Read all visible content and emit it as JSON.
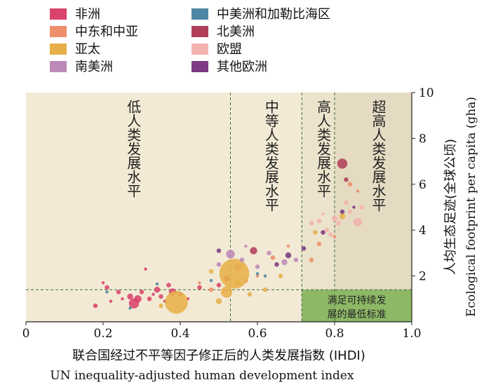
{
  "chart_data": {
    "type": "scatter",
    "xlabel": "联合国经过不平等因子修正后的人类发展指数 (IHDI)",
    "xlabel_en": "UN inequality-adjusted human development index",
    "ylabel": "人均生态足迹(全球公顷)",
    "ylabel_en": "Ecological footprint per capita (gha)",
    "xlim": [
      0,
      1.0
    ],
    "ylim": [
      0,
      10
    ],
    "x_ticks": [
      "0",
      "0.2",
      "0.4",
      "0.6",
      "0.8",
      "1.0"
    ],
    "x_tick_values": [
      0,
      0.2,
      0.4,
      0.6,
      0.8,
      1.0
    ],
    "y_ticks": [
      "2",
      "4",
      "6",
      "8",
      "10"
    ],
    "y_tick_values": [
      2,
      4,
      6,
      8,
      10
    ],
    "thresholds_x": [
      0.53,
      0.715,
      0.8
    ],
    "threshold_y": 1.4,
    "zones": [
      {
        "label": "低人类发展水平",
        "x_range": [
          0,
          0.53
        ],
        "color": "#f3ead5"
      },
      {
        "label": "中等人类发展水平",
        "x_range": [
          0.53,
          0.715
        ],
        "color": "#f3ead5"
      },
      {
        "label": "高人类发展水平",
        "x_range": [
          0.715,
          0.8
        ],
        "color": "#ece3cc"
      },
      {
        "label": "超高人类发展水平",
        "x_range": [
          0.8,
          1.0
        ],
        "color": "#e5dbc2"
      }
    ],
    "sustainable_box": {
      "label_line1": "满足可持续发",
      "label_line2": "展的最低标准",
      "color": "#8db866"
    },
    "legend": [
      {
        "name": "非洲",
        "color": "#d9436c"
      },
      {
        "name": "中东和中亚",
        "color": "#ee8e6c"
      },
      {
        "name": "亚太",
        "color": "#e7b04a"
      },
      {
        "name": "南美洲",
        "color": "#bd8ab8"
      },
      {
        "name": "中美洲和加勒比海区",
        "color": "#4d86a4"
      },
      {
        "name": "北美洲",
        "color": "#b0405a"
      },
      {
        "name": "欧盟",
        "color": "#f3b2ae"
      },
      {
        "name": "其他欧洲",
        "color": "#7d3a82"
      }
    ],
    "series": [
      {
        "name": "非洲",
        "color": "#d9436c",
        "points": [
          {
            "x": 0.18,
            "y": 0.7,
            "s": 3
          },
          {
            "x": 0.2,
            "y": 1.7,
            "s": 2
          },
          {
            "x": 0.21,
            "y": 1.5,
            "s": 3
          },
          {
            "x": 0.22,
            "y": 0.9,
            "s": 2
          },
          {
            "x": 0.24,
            "y": 1.3,
            "s": 3
          },
          {
            "x": 0.25,
            "y": 1.0,
            "s": 2
          },
          {
            "x": 0.27,
            "y": 1.1,
            "s": 4
          },
          {
            "x": 0.28,
            "y": 0.8,
            "s": 7
          },
          {
            "x": 0.29,
            "y": 1.0,
            "s": 5
          },
          {
            "x": 0.3,
            "y": 1.3,
            "s": 3
          },
          {
            "x": 0.31,
            "y": 2.3,
            "s": 2
          },
          {
            "x": 0.32,
            "y": 1.0,
            "s": 3
          },
          {
            "x": 0.33,
            "y": 1.2,
            "s": 2
          },
          {
            "x": 0.34,
            "y": 1.4,
            "s": 4
          },
          {
            "x": 0.35,
            "y": 1.1,
            "s": 3
          },
          {
            "x": 0.36,
            "y": 0.9,
            "s": 2
          },
          {
            "x": 0.37,
            "y": 1.6,
            "s": 3
          },
          {
            "x": 0.38,
            "y": 1.3,
            "s": 5
          },
          {
            "x": 0.4,
            "y": 1.2,
            "s": 3
          },
          {
            "x": 0.42,
            "y": 1.0,
            "s": 2
          },
          {
            "x": 0.45,
            "y": 1.5,
            "s": 3
          },
          {
            "x": 0.5,
            "y": 1.6,
            "s": 3
          },
          {
            "x": 0.52,
            "y": 1.9,
            "s": 4
          }
        ]
      },
      {
        "name": "中东和中亚",
        "color": "#ee8e6c",
        "points": [
          {
            "x": 0.48,
            "y": 1.4,
            "s": 3
          },
          {
            "x": 0.55,
            "y": 2.4,
            "s": 5
          },
          {
            "x": 0.57,
            "y": 1.8,
            "s": 3
          },
          {
            "x": 0.6,
            "y": 2.0,
            "s": 2
          },
          {
            "x": 0.64,
            "y": 2.8,
            "s": 3
          },
          {
            "x": 0.68,
            "y": 3.3,
            "s": 2
          },
          {
            "x": 0.74,
            "y": 2.7,
            "s": 3
          },
          {
            "x": 0.76,
            "y": 3.4,
            "s": 3
          },
          {
            "x": 0.8,
            "y": 3.7,
            "s": 2
          },
          {
            "x": 0.84,
            "y": 6.0,
            "s": 3
          },
          {
            "x": 0.86,
            "y": 5.7,
            "s": 2
          },
          {
            "x": 0.45,
            "y": 1.7,
            "s": 2
          }
        ]
      },
      {
        "name": "亚太",
        "color": "#e7b04a",
        "points": [
          {
            "x": 0.39,
            "y": 0.85,
            "s": 16
          },
          {
            "x": 0.54,
            "y": 2.1,
            "s": 21
          },
          {
            "x": 0.52,
            "y": 1.3,
            "s": 8
          },
          {
            "x": 0.5,
            "y": 0.9,
            "s": 4
          },
          {
            "x": 0.55,
            "y": 1.7,
            "s": 4
          },
          {
            "x": 0.58,
            "y": 1.2,
            "s": 3
          },
          {
            "x": 0.62,
            "y": 1.4,
            "s": 3
          },
          {
            "x": 0.66,
            "y": 2.0,
            "s": 3
          },
          {
            "x": 0.35,
            "y": 0.7,
            "s": 3
          },
          {
            "x": 0.48,
            "y": 2.2,
            "s": 3
          },
          {
            "x": 0.75,
            "y": 3.9,
            "s": 3
          },
          {
            "x": 0.82,
            "y": 4.6,
            "s": 4
          }
        ]
      },
      {
        "name": "南美洲",
        "color": "#bd8ab8",
        "points": [
          {
            "x": 0.53,
            "y": 2.95,
            "s": 6
          },
          {
            "x": 0.56,
            "y": 2.7,
            "s": 3
          },
          {
            "x": 0.6,
            "y": 2.4,
            "s": 3
          },
          {
            "x": 0.63,
            "y": 3.0,
            "s": 3
          },
          {
            "x": 0.67,
            "y": 2.6,
            "s": 4
          },
          {
            "x": 0.7,
            "y": 2.7,
            "s": 3
          },
          {
            "x": 0.5,
            "y": 2.5,
            "s": 3
          },
          {
            "x": 0.57,
            "y": 3.3,
            "s": 2
          }
        ]
      },
      {
        "name": "中美洲和加勒比海区",
        "color": "#4d86a4",
        "points": [
          {
            "x": 0.21,
            "y": 1.3,
            "s": 2
          },
          {
            "x": 0.34,
            "y": 1.65,
            "s": 2
          },
          {
            "x": 0.48,
            "y": 1.8,
            "s": 2
          },
          {
            "x": 0.6,
            "y": 2.1,
            "s": 2
          },
          {
            "x": 0.62,
            "y": 2.0,
            "s": 2
          },
          {
            "x": 0.27,
            "y": 0.6,
            "s": 2
          }
        ]
      },
      {
        "name": "北美洲",
        "color": "#b0405a",
        "points": [
          {
            "x": 0.82,
            "y": 6.9,
            "s": 7
          },
          {
            "x": 0.83,
            "y": 6.2,
            "s": 3
          },
          {
            "x": 0.59,
            "y": 3.1,
            "s": 5
          }
        ]
      },
      {
        "name": "欧盟",
        "color": "#f3b2ae",
        "points": [
          {
            "x": 0.74,
            "y": 4.3,
            "s": 3
          },
          {
            "x": 0.76,
            "y": 4.4,
            "s": 3
          },
          {
            "x": 0.78,
            "y": 4.0,
            "s": 3
          },
          {
            "x": 0.8,
            "y": 4.5,
            "s": 4
          },
          {
            "x": 0.81,
            "y": 4.3,
            "s": 3
          },
          {
            "x": 0.84,
            "y": 4.8,
            "s": 3
          },
          {
            "x": 0.86,
            "y": 4.35,
            "s": 6
          },
          {
            "x": 0.87,
            "y": 5.0,
            "s": 3
          },
          {
            "x": 0.79,
            "y": 3.8,
            "s": 3
          },
          {
            "x": 0.83,
            "y": 5.2,
            "s": 3
          },
          {
            "x": 0.77,
            "y": 4.7,
            "s": 2
          }
        ]
      },
      {
        "name": "其他欧洲",
        "color": "#7d3a82",
        "points": [
          {
            "x": 0.5,
            "y": 3.1,
            "s": 3
          },
          {
            "x": 0.65,
            "y": 2.5,
            "s": 3
          },
          {
            "x": 0.68,
            "y": 2.9,
            "s": 4
          },
          {
            "x": 0.72,
            "y": 3.2,
            "s": 3
          },
          {
            "x": 0.77,
            "y": 3.9,
            "s": 3
          },
          {
            "x": 0.82,
            "y": 4.8,
            "s": 3
          },
          {
            "x": 0.85,
            "y": 5.0,
            "s": 2
          }
        ]
      }
    ]
  }
}
